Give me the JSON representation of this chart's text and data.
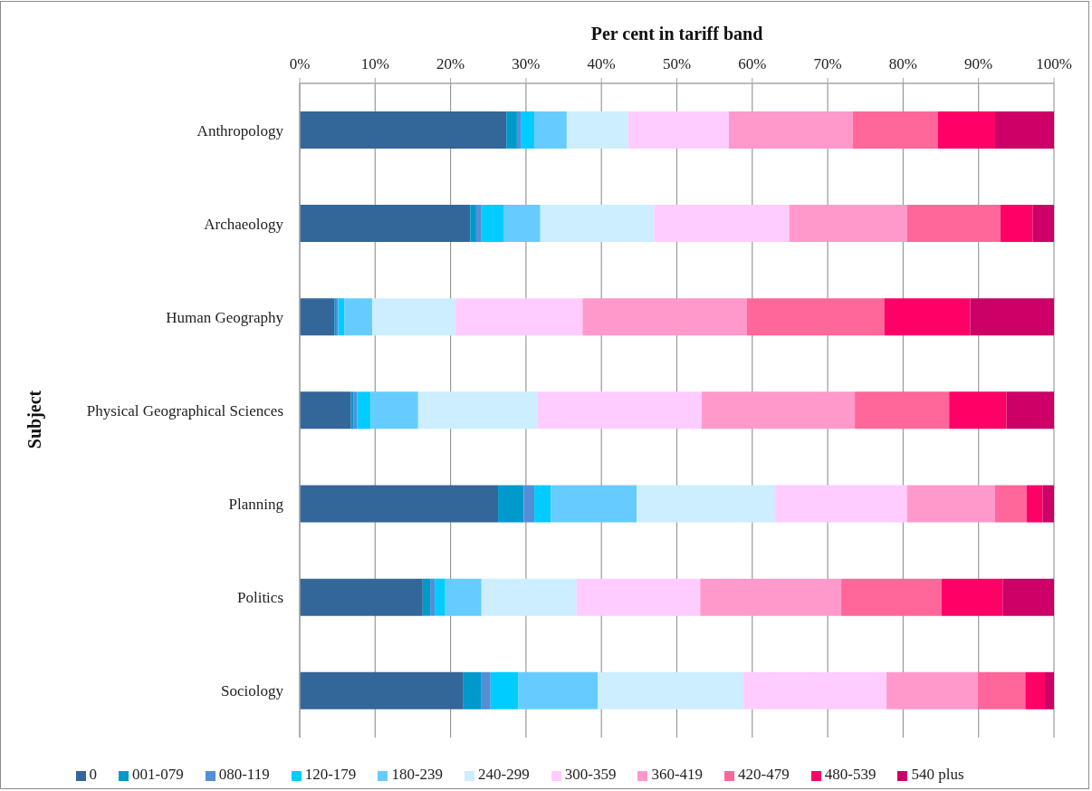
{
  "chart_data": {
    "type": "bar",
    "orientation": "horizontal",
    "stacked": true,
    "xlabel": "Per cent in tariff band",
    "ylabel": "Subject",
    "categories": [
      "Anthropology",
      "Archaeology",
      "Human Geography",
      "Physical Geographical Sciences",
      "Planning",
      "Politics",
      "Sociology"
    ],
    "series": [
      {
        "name": "0",
        "color": "#336699",
        "values": [
          27.4,
          22.6,
          4.6,
          6.8,
          26.3,
          16.3,
          21.7
        ]
      },
      {
        "name": "001-079",
        "color": "#0099cc",
        "values": [
          1.4,
          0.8,
          0.2,
          0.3,
          3.4,
          1.0,
          2.4
        ]
      },
      {
        "name": "080-119",
        "color": "#558ed5",
        "values": [
          0.5,
          0.7,
          0.3,
          0.5,
          1.4,
          0.6,
          1.2
        ]
      },
      {
        "name": "120-179",
        "color": "#00ccff",
        "values": [
          1.8,
          3.0,
          0.8,
          1.8,
          2.2,
          1.4,
          3.7
        ]
      },
      {
        "name": "180-239",
        "color": "#66ccff",
        "values": [
          4.3,
          4.8,
          3.7,
          6.3,
          11.4,
          4.8,
          10.5
        ]
      },
      {
        "name": "240-299",
        "color": "#cceeff",
        "values": [
          8.1,
          15.1,
          11.0,
          15.8,
          18.3,
          12.6,
          19.3
        ]
      },
      {
        "name": "300-359",
        "color": "#ffccff",
        "values": [
          13.4,
          17.9,
          16.9,
          21.8,
          17.5,
          16.4,
          19.0
        ]
      },
      {
        "name": "360-419",
        "color": "#ff99cc",
        "values": [
          16.4,
          15.6,
          21.8,
          20.3,
          11.7,
          18.7,
          12.1
        ]
      },
      {
        "name": "420-479",
        "color": "#ff6699",
        "values": [
          11.3,
          12.4,
          18.2,
          12.5,
          4.2,
          13.3,
          6.3
        ]
      },
      {
        "name": "480-539",
        "color": "#ff0066",
        "values": [
          7.6,
          4.3,
          11.4,
          7.6,
          2.1,
          8.1,
          2.6
        ]
      },
      {
        "name": "540 plus",
        "color": "#cc0066",
        "values": [
          7.8,
          2.8,
          11.1,
          6.3,
          1.5,
          6.8,
          1.2
        ]
      }
    ],
    "xlim": [
      0,
      100
    ],
    "xticks": [
      {
        "value": 0,
        "label": "0%"
      },
      {
        "value": 10,
        "label": "10%"
      },
      {
        "value": 20,
        "label": "20%"
      },
      {
        "value": 30,
        "label": "30%"
      },
      {
        "value": 40,
        "label": "40%"
      },
      {
        "value": 50,
        "label": "50%"
      },
      {
        "value": 60,
        "label": "60%"
      },
      {
        "value": 70,
        "label": "70%"
      },
      {
        "value": 80,
        "label": "80%"
      },
      {
        "value": 90,
        "label": "90%"
      },
      {
        "value": 100,
        "label": "100%"
      }
    ],
    "grid": "x",
    "legend": "bottom"
  }
}
